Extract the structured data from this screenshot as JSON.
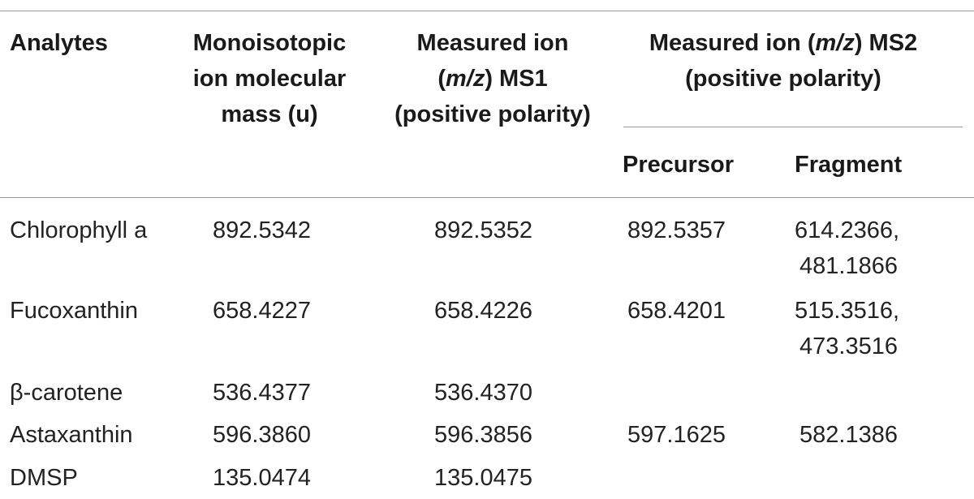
{
  "table": {
    "headers": {
      "analytes": "Analytes",
      "mono_line1": "Monoisotopic",
      "mono_line2": "ion molecular",
      "mono_line3": "mass (u)",
      "ms1_line1": "Measured ion",
      "ms1_line2_open": "(",
      "ms1_line2_mz": "m/z",
      "ms1_line2_close": ") MS1",
      "ms1_line3": "(positive polarity)",
      "ms2_line1_pre": "Measured ion (",
      "ms2_line1_mz": "m/z",
      "ms2_line1_post": ") MS2",
      "ms2_line2": "(positive polarity)",
      "precursor": "Precursor",
      "fragment": "Fragment"
    },
    "rows": [
      {
        "analyte": "Chlorophyll a",
        "mono": "892.5342",
        "ms1": "892.5352",
        "precursor": "892.5357",
        "fragment_line1": "614.2366,",
        "fragment_line2": "481.1866"
      },
      {
        "analyte": "Fucoxanthin",
        "mono": "658.4227",
        "ms1": "658.4226",
        "precursor": "658.4201",
        "fragment_line1": "515.3516,",
        "fragment_line2": "473.3516"
      },
      {
        "analyte": "β-carotene",
        "mono": "536.4377",
        "ms1": "536.4370",
        "precursor": "",
        "fragment_line1": "",
        "fragment_line2": ""
      },
      {
        "analyte": "Astaxanthin",
        "mono": "596.3860",
        "ms1": "596.3856",
        "precursor": "597.1625",
        "fragment_line1": "582.1386",
        "fragment_line2": ""
      },
      {
        "analyte": "DMSP",
        "mono": "135.0474",
        "ms1": "135.0475",
        "precursor": "",
        "fragment_line1": "",
        "fragment_line2": ""
      }
    ]
  }
}
